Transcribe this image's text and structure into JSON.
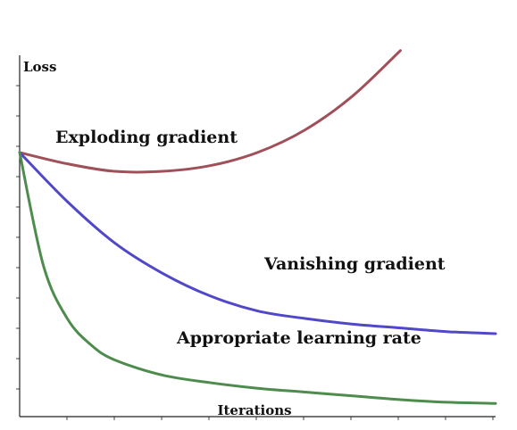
{
  "chart_data": {
    "type": "line",
    "title": "",
    "xlabel": "Iterations",
    "ylabel": "Loss",
    "xlim": [
      0,
      100
    ],
    "ylim": [
      0,
      100
    ],
    "grid": false,
    "legend": "none",
    "series": [
      {
        "color": "#a05058",
        "x": [
          0,
          10,
          20,
          30,
          40,
          50,
          60,
          70,
          80
        ],
        "y": [
          70,
          67,
          65,
          65,
          66.5,
          70,
          76,
          85,
          97
        ]
      },
      {
        "color": "#5048c8",
        "x": [
          0,
          10,
          20,
          30,
          40,
          50,
          60,
          70,
          80,
          90,
          100
        ],
        "y": [
          70,
          57,
          46,
          38,
          32,
          28,
          26,
          24.5,
          23.5,
          22.5,
          22
        ]
      },
      {
        "color": "#4e8c4e",
        "x": [
          0,
          5,
          10,
          15,
          20,
          30,
          40,
          50,
          60,
          70,
          80,
          90,
          100
        ],
        "y": [
          70,
          40,
          26,
          19,
          15,
          11,
          9,
          7.5,
          6.5,
          5.5,
          4.5,
          3.8,
          3.5
        ]
      }
    ],
    "annotations": [
      "Exploding gradient",
      "Vanishing gradient",
      "Appropriate learning rate"
    ]
  }
}
